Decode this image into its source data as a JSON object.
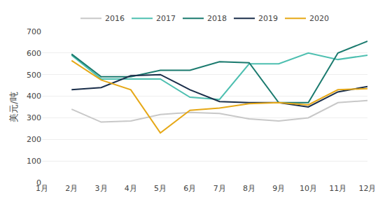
{
  "chart_data": {
    "type": "line",
    "ylabel": "美元/吨",
    "categories": [
      "1月",
      "2月",
      "3月",
      "4月",
      "5月",
      "6月",
      "7月",
      "8月",
      "9月",
      "10月",
      "11月",
      "12月"
    ],
    "series": [
      {
        "name": "2016",
        "color": "#c8c8c8",
        "values": [
          null,
          340,
          280,
          285,
          315,
          325,
          320,
          295,
          285,
          300,
          370,
          380
        ]
      },
      {
        "name": "2017",
        "color": "#4dbfb0",
        "values": [
          null,
          590,
          480,
          480,
          480,
          395,
          385,
          550,
          550,
          600,
          570,
          590
        ]
      },
      {
        "name": "2018",
        "color": "#1a7a6e",
        "values": [
          null,
          595,
          490,
          490,
          520,
          520,
          560,
          555,
          370,
          370,
          600,
          655
        ]
      },
      {
        "name": "2019",
        "color": "#1a2e4a",
        "values": [
          null,
          430,
          440,
          495,
          500,
          430,
          375,
          370,
          370,
          350,
          420,
          445
        ]
      },
      {
        "name": "2020",
        "color": "#e6a817",
        "values": [
          null,
          565,
          475,
          430,
          230,
          335,
          345,
          365,
          370,
          360,
          430,
          435
        ]
      }
    ],
    "ylim": [
      0,
      700
    ],
    "yticks": [
      0,
      100,
      200,
      300,
      400,
      500,
      600,
      700
    ],
    "grid": true,
    "legend": "top"
  }
}
